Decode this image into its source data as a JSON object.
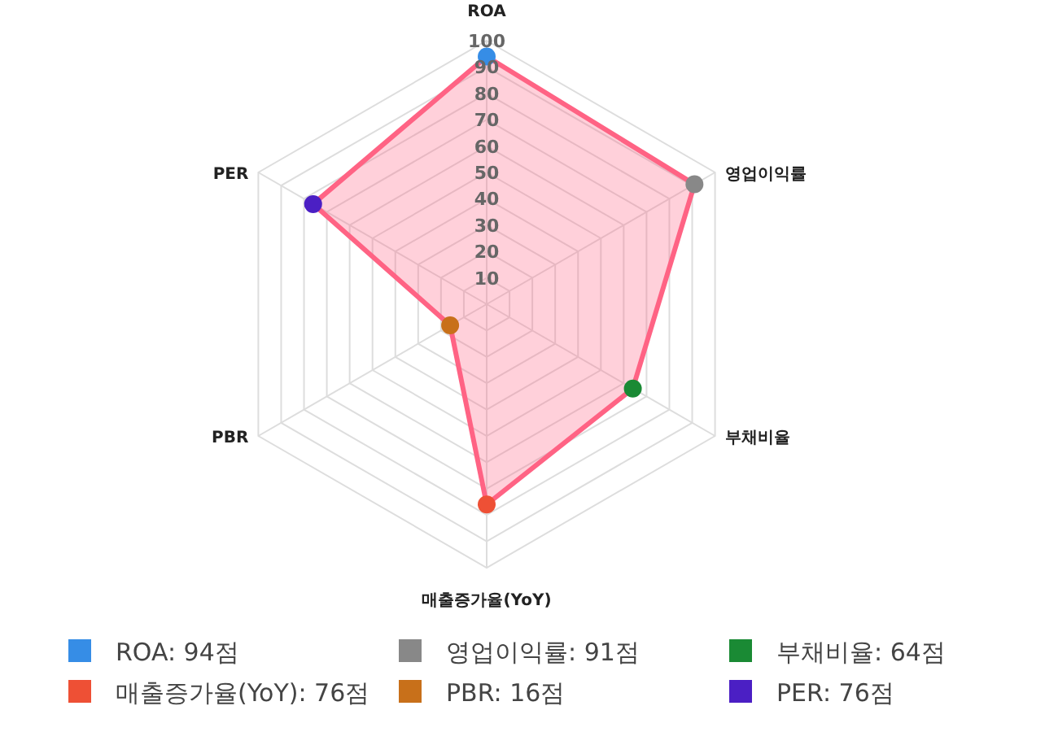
{
  "chart_data": {
    "type": "radar",
    "categories": [
      "ROA",
      "영업이익률",
      "부채비율",
      "매출증가율(YoY)",
      "PBR",
      "PER"
    ],
    "series": [
      {
        "color": "#ff6384",
        "values": [
          94,
          91,
          64,
          76,
          16,
          76
        ]
      }
    ],
    "colors": [
      "#368de6",
      "#888888",
      "#1a8a34",
      "#ee5035",
      "#c8701a",
      "#4b1fc4"
    ],
    "value_labels": [
      "ROA: 94점",
      "영업이익률: 91점",
      "부채비율: 64점",
      "매출증가율(YoY): 76점",
      "PBR: 16점",
      "PER: 76점"
    ],
    "ylim": [
      0,
      100
    ],
    "yticks": [
      10,
      20,
      30,
      40,
      50,
      60,
      70,
      80,
      90,
      100
    ],
    "grid": true,
    "marker": "circle"
  }
}
